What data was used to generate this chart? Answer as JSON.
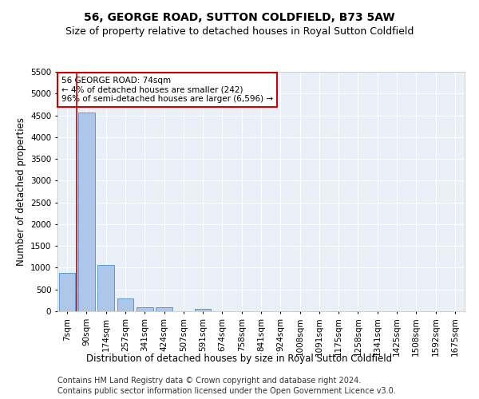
{
  "title": "56, GEORGE ROAD, SUTTON COLDFIELD, B73 5AW",
  "subtitle": "Size of property relative to detached houses in Royal Sutton Coldfield",
  "xlabel": "Distribution of detached houses by size in Royal Sutton Coldfield",
  "ylabel": "Number of detached properties",
  "footnote1": "Contains HM Land Registry data © Crown copyright and database right 2024.",
  "footnote2": "Contains public sector information licensed under the Open Government Licence v3.0.",
  "annotation_title": "56 GEORGE ROAD: 74sqm",
  "annotation_line1": "← 4% of detached houses are smaller (242)",
  "annotation_line2": "96% of semi-detached houses are larger (6,596) →",
  "bar_categories": [
    "7sqm",
    "90sqm",
    "174sqm",
    "257sqm",
    "341sqm",
    "424sqm",
    "507sqm",
    "591sqm",
    "674sqm",
    "758sqm",
    "841sqm",
    "924sqm",
    "1008sqm",
    "1091sqm",
    "1175sqm",
    "1258sqm",
    "1341sqm",
    "1425sqm",
    "1508sqm",
    "1592sqm",
    "1675sqm"
  ],
  "bar_values": [
    880,
    4560,
    1060,
    290,
    95,
    90,
    0,
    55,
    0,
    0,
    0,
    0,
    0,
    0,
    0,
    0,
    0,
    0,
    0,
    0,
    0
  ],
  "bar_color": "#aec6e8",
  "bar_edge_color": "#5b9bd5",
  "marker_color": "#cc0000",
  "ylim": [
    0,
    5500
  ],
  "yticks": [
    0,
    500,
    1000,
    1500,
    2000,
    2500,
    3000,
    3500,
    4000,
    4500,
    5000,
    5500
  ],
  "bg_color": "#eaf0f8",
  "grid_color": "#ffffff",
  "annotation_box_color": "#cc0000",
  "title_fontsize": 10,
  "subtitle_fontsize": 9,
  "xlabel_fontsize": 8.5,
  "ylabel_fontsize": 8.5,
  "tick_fontsize": 7.5,
  "footnote_fontsize": 7
}
